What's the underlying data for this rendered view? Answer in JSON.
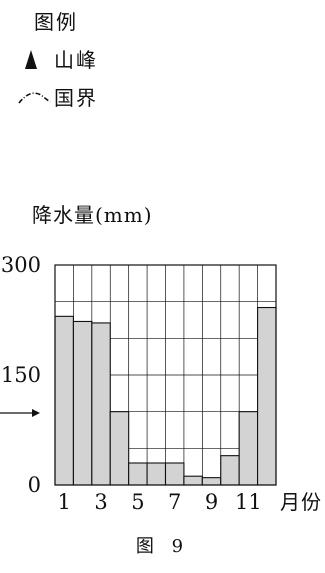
{
  "legend": {
    "title": "图例",
    "items": [
      {
        "symbol": "peak-triangle-icon",
        "label": "山峰"
      },
      {
        "symbol": "border-line-icon",
        "label": "国界"
      }
    ]
  },
  "figure_caption": "图 9",
  "chart_data": {
    "type": "bar",
    "ylabel": "降水量(mm)",
    "xlabel": "月份",
    "categories": [
      "1",
      "2",
      "3",
      "4",
      "5",
      "6",
      "7",
      "8",
      "9",
      "10",
      "11",
      "12"
    ],
    "x_tick_labels": [
      "1",
      "3",
      "5",
      "7",
      "9",
      "11"
    ],
    "y_tick_labels": [
      "300",
      "150",
      "0"
    ],
    "values": [
      230,
      223,
      221,
      100,
      30,
      30,
      30,
      12,
      10,
      40,
      100,
      242
    ],
    "ylim": [
      0,
      300
    ],
    "grid": true,
    "bar_color": "#d3d3d3",
    "edge_color": "#111111"
  }
}
